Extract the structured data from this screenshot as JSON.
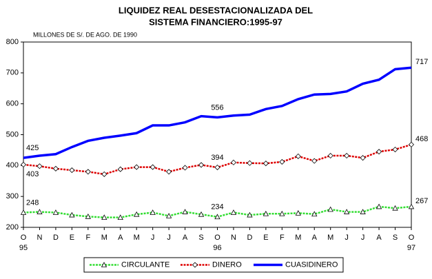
{
  "chart_data": {
    "type": "line",
    "title": [
      "LIQUIDEZ REAL DESESTACIONALIZADA DEL",
      "SISTEMA FINANCIERO:1995-97"
    ],
    "y_label": "MILLONES DE S/. DE AGO. DE 1990",
    "categories": [
      "O",
      "N",
      "D",
      "E",
      "F",
      "M",
      "A",
      "M",
      "J",
      "J",
      "A",
      "S",
      "O",
      "N",
      "D",
      "E",
      "F",
      "M",
      "A",
      "M",
      "J",
      "J",
      "A",
      "S",
      "O"
    ],
    "category_years": [
      "95",
      null,
      null,
      null,
      null,
      null,
      null,
      null,
      null,
      null,
      null,
      null,
      "96",
      null,
      null,
      null,
      null,
      null,
      null,
      null,
      null,
      null,
      null,
      null,
      "97"
    ],
    "ylim": [
      200,
      800
    ],
    "yticks": [
      200,
      300,
      400,
      500,
      600,
      700,
      800
    ],
    "label_indices": [
      0,
      12,
      24
    ],
    "series": [
      {
        "name": "CIRCULANTE",
        "color": "#33dd33",
        "marker": "triangle",
        "values": [
          248,
          250,
          248,
          240,
          235,
          232,
          232,
          242,
          248,
          237,
          250,
          242,
          234,
          248,
          240,
          244,
          244,
          246,
          243,
          258,
          250,
          250,
          267,
          262,
          267
        ]
      },
      {
        "name": "DINERO",
        "color": "#dd0000",
        "marker": "diamond",
        "values": [
          403,
          398,
          390,
          385,
          380,
          372,
          388,
          395,
          395,
          380,
          393,
          402,
          394,
          410,
          408,
          407,
          412,
          430,
          415,
          432,
          432,
          425,
          445,
          452,
          468
        ]
      },
      {
        "name": "CUASIDINERO",
        "color": "#0000ff",
        "marker": "none",
        "values": [
          425,
          432,
          437,
          460,
          480,
          490,
          497,
          505,
          530,
          530,
          540,
          560,
          556,
          562,
          565,
          583,
          593,
          615,
          630,
          632,
          640,
          665,
          678,
          712,
          717
        ]
      }
    ]
  }
}
